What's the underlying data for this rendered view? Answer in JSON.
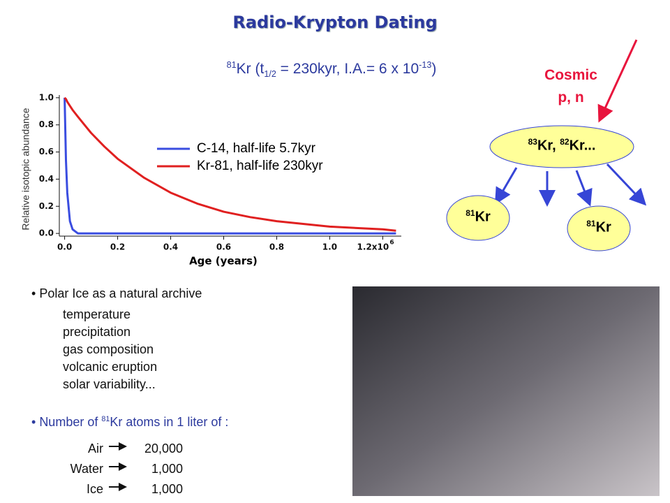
{
  "header": {
    "title": "Radio-Krypton Dating",
    "formula": {
      "sup1": "81",
      "t1": "Kr (t",
      "sub": "1/2",
      "t2": " = 230kyr,  I.A.= 6 x 10",
      "sup2": "-13",
      "t3": ")"
    }
  },
  "chart_data": {
    "type": "line",
    "xlabel": "Age (years)",
    "ylabel": "Relative isotopic abundance",
    "x": [
      0,
      0.005,
      0.01,
      0.02,
      0.03,
      0.05,
      0.1,
      0.15,
      0.2,
      0.3,
      0.4,
      0.5,
      0.6,
      0.7,
      0.8,
      0.9,
      1.0,
      1.1,
      1.2,
      1.25
    ],
    "series": [
      {
        "name": "C-14, half-life 5.7kyr",
        "color": "#3a4de0",
        "values": [
          1,
          0.54,
          0.3,
          0.09,
          0.03,
          0,
          0,
          0,
          0,
          0,
          0,
          0,
          0,
          0,
          0,
          0,
          0,
          0,
          0,
          0
        ]
      },
      {
        "name": "Kr-81, half-life 230kyr",
        "color": "#e02020",
        "values": [
          1,
          0.99,
          0.97,
          0.94,
          0.91,
          0.86,
          0.74,
          0.64,
          0.55,
          0.41,
          0.3,
          0.22,
          0.16,
          0.12,
          0.09,
          0.07,
          0.05,
          0.04,
          0.03,
          0.02
        ]
      }
    ],
    "xlim": [
      -0.02,
      1.27
    ],
    "ylim": [
      -0.02,
      1.02
    ],
    "xticks": [
      {
        "value": 0,
        "label": "0.0"
      },
      0.2,
      0.4,
      0.6,
      0.8,
      {
        "value": 1,
        "label": "1.0"
      },
      {
        "value": 1.2,
        "label": "1.2x10"
      }
    ],
    "x_exponent": "6",
    "yticks": [
      {
        "value": 0,
        "label": "0.0"
      },
      0.2,
      0.4,
      0.6,
      0.8,
      {
        "value": 1,
        "label": "1.0"
      }
    ],
    "legend": "upper right"
  },
  "diagram": {
    "source": [
      "Cosmic",
      "p, n"
    ],
    "parent": {
      "sup1": "83",
      "t1": "Kr, ",
      "sup2": "82",
      "t2": "Kr..."
    },
    "products": [
      {
        "sup": "81",
        "t": "Kr"
      },
      {
        "sup": "81",
        "t": "Kr"
      }
    ]
  },
  "archive": {
    "heading": "Polar Ice as a natural archive",
    "items": [
      "temperature",
      "precipitation",
      "gas composition",
      "volcanic eruption",
      "solar variability..."
    ]
  },
  "atoms": {
    "heading": {
      "t1": "Number of ",
      "sup": "81",
      "t2": "Kr atoms in 1 liter of :"
    },
    "rows": [
      {
        "medium": "Air",
        "value": "20,000"
      },
      {
        "medium": "Water",
        "value": "1,000"
      },
      {
        "medium": "Ice",
        "value": "1,000"
      }
    ]
  }
}
